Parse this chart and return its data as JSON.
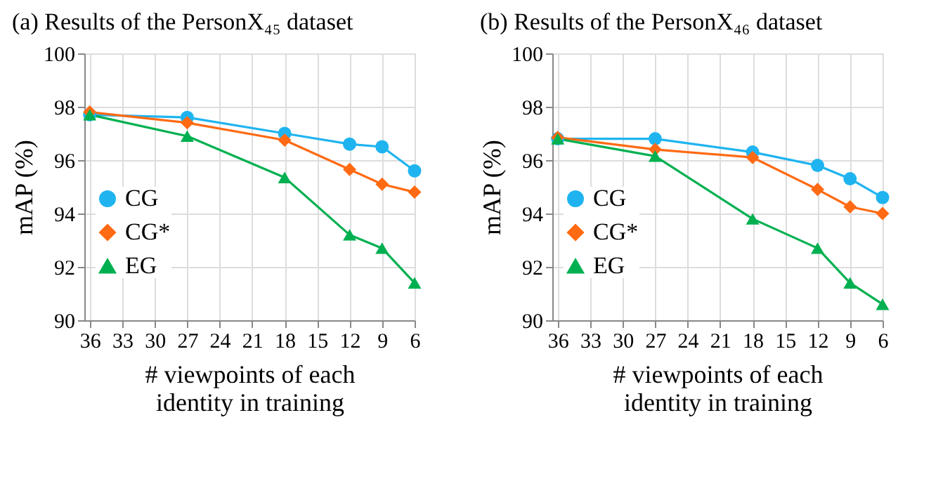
{
  "chart_data": [
    {
      "type": "line",
      "title": "(a)  Results of the PersonX₄₅ dataset",
      "xlabel": "# viewpoints of each\nidentity in training",
      "ylabel": "mAP (%)",
      "x": [
        36,
        27,
        18,
        12,
        9,
        6
      ],
      "xlim": [
        36.5,
        6
      ],
      "xticks": [
        36,
        33,
        30,
        27,
        24,
        21,
        18,
        15,
        12,
        9,
        6
      ],
      "ylim": [
        90,
        100
      ],
      "yticks": [
        90,
        92,
        94,
        96,
        98,
        100
      ],
      "grid": true,
      "legend": "left",
      "line_style": "solid",
      "series": [
        {
          "name": "CG",
          "color": "#1fb4f0",
          "marker": "circle",
          "values": [
            97.7,
            97.6,
            97.0,
            96.6,
            96.5,
            95.6
          ]
        },
        {
          "name": "CG*",
          "color": "#ff6a13",
          "marker": "diamond",
          "values": [
            97.8,
            97.4,
            96.75,
            95.65,
            95.1,
            94.8
          ]
        },
        {
          "name": "EG",
          "color": "#00b050",
          "marker": "triangle",
          "values": [
            97.7,
            96.9,
            95.35,
            93.2,
            92.7,
            91.4
          ]
        }
      ]
    },
    {
      "type": "line",
      "title": "(b)  Results of the PersonX₄₆ dataset",
      "xlabel": "# viewpoints of each\nidentity in training",
      "ylabel": "mAP (%)",
      "x": [
        36,
        27,
        18,
        12,
        9,
        6
      ],
      "xlim": [
        36.5,
        6
      ],
      "xticks": [
        36,
        33,
        30,
        27,
        24,
        21,
        18,
        15,
        12,
        9,
        6
      ],
      "ylim": [
        90,
        100
      ],
      "yticks": [
        90,
        92,
        94,
        96,
        98,
        100
      ],
      "grid": true,
      "legend": "left",
      "line_style": "solid",
      "series": [
        {
          "name": "CG",
          "color": "#1fb4f0",
          "marker": "circle",
          "values": [
            96.8,
            96.8,
            96.3,
            95.8,
            95.3,
            94.6
          ]
        },
        {
          "name": "CG*",
          "color": "#ff6a13",
          "marker": "diamond",
          "values": [
            96.85,
            96.4,
            96.1,
            94.9,
            94.25,
            94.0
          ]
        },
        {
          "name": "EG",
          "color": "#00b050",
          "marker": "triangle",
          "values": [
            96.8,
            96.15,
            93.8,
            92.7,
            91.4,
            90.6
          ]
        }
      ]
    }
  ]
}
